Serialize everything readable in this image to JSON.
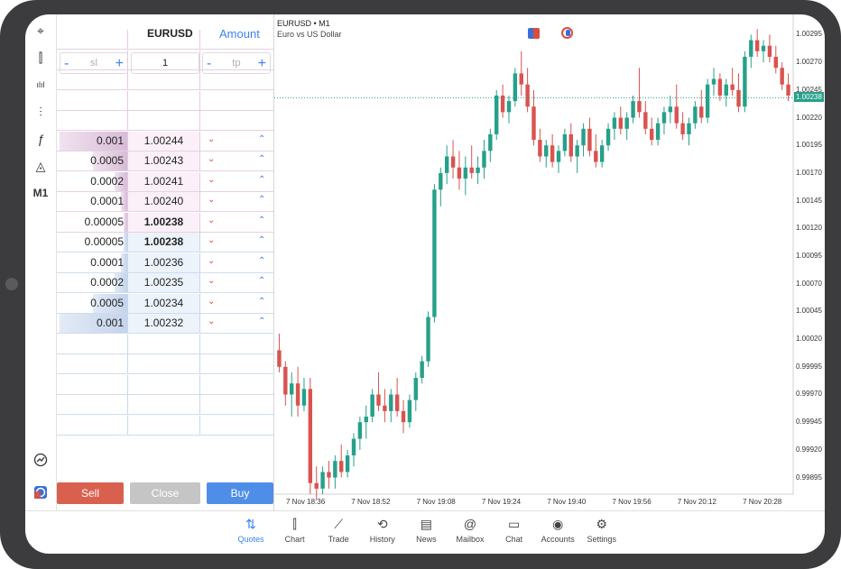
{
  "toolbar": {
    "items": [
      {
        "icon": "crosshair-icon",
        "glyph": "⌖"
      },
      {
        "icon": "candlestick-icon",
        "glyph": "⫿"
      },
      {
        "icon": "volume-bars-icon",
        "glyph": "ılıl"
      },
      {
        "icon": "indicators-sliders-icon",
        "glyph": "⫶"
      },
      {
        "icon": "function-icon",
        "glyph": "ƒ"
      },
      {
        "icon": "objects-shapes-icon",
        "glyph": "◬"
      }
    ],
    "timeframe": "M1"
  },
  "dom": {
    "symbol": "EURUSD",
    "amount_label": "Amount",
    "sl_placeholder": "sl",
    "tp_placeholder": "tp",
    "volume_value": "1",
    "sell_rows": [
      {
        "volume": "0.001",
        "price": "1.00244",
        "bar": 0.95
      },
      {
        "volume": "0.0005",
        "price": "1.00243",
        "bar": 0.48
      },
      {
        "volume": "0.0002",
        "price": "1.00241",
        "bar": 0.18
      },
      {
        "volume": "0.0001",
        "price": "1.00240",
        "bar": 0.09
      },
      {
        "volume": "0.00005",
        "price": "1.00238",
        "bar": 0.05
      }
    ],
    "buy_rows": [
      {
        "volume": "0.00005",
        "price": "1.00238",
        "bar": 0.05
      },
      {
        "volume": "0.0001",
        "price": "1.00236",
        "bar": 0.09
      },
      {
        "volume": "0.0002",
        "price": "1.00235",
        "bar": 0.18
      },
      {
        "volume": "0.0005",
        "price": "1.00234",
        "bar": 0.48
      },
      {
        "volume": "0.001",
        "price": "1.00232",
        "bar": 0.95
      }
    ],
    "sell_label": "Sell",
    "close_label": "Close",
    "buy_label": "Buy",
    "colors": {
      "sell": "#d9604f",
      "close": "#c5c5c5",
      "buy": "#4f8ee8"
    }
  },
  "chart": {
    "title": "EURUSD • M1",
    "subtitle": "Euro vs US Dollar",
    "current_price": "1.00238",
    "price_labels": [
      "1.00295",
      "1.00270",
      "1.00245",
      "1.00220",
      "1.00195",
      "1.00170",
      "1.00145",
      "1.00120",
      "1.00095",
      "1.00070",
      "1.00045",
      "1.00020",
      "0.99995",
      "0.99970",
      "0.99945",
      "0.99920",
      "0.99895"
    ],
    "time_labels": [
      "7 Nov 18:36",
      "7 Nov 18:52",
      "7 Nov 19:08",
      "7 Nov 19:24",
      "7 Nov 19:40",
      "7 Nov 19:56",
      "7 Nov 20:12",
      "7 Nov 20:28"
    ],
    "colors": {
      "up": "#26a08a",
      "down": "#d9534f",
      "current": "#26a08a"
    }
  },
  "chart_data": {
    "type": "candlestick",
    "ylim": [
      0.9988,
      1.0031
    ],
    "candles": [
      [
        1.0001,
        1.00025,
        0.9999,
        0.99995
      ],
      [
        0.99995,
        1.0,
        0.9996,
        0.9997
      ],
      [
        0.9997,
        0.9999,
        0.9995,
        0.9998
      ],
      [
        0.9998,
        0.99995,
        0.9995,
        0.9996
      ],
      [
        0.9996,
        0.99985,
        0.99955,
        0.99975
      ],
      [
        0.99975,
        0.99985,
        0.9988,
        0.9989
      ],
      [
        0.9989,
        0.99905,
        0.99875,
        0.99885
      ],
      [
        0.99885,
        0.99905,
        0.9988,
        0.999
      ],
      [
        0.999,
        0.9991,
        0.99885,
        0.99895
      ],
      [
        0.99895,
        0.99915,
        0.99885,
        0.9991
      ],
      [
        0.9991,
        0.99925,
        0.99895,
        0.999
      ],
      [
        0.999,
        0.9992,
        0.99895,
        0.99915
      ],
      [
        0.99915,
        0.99935,
        0.99905,
        0.9993
      ],
      [
        0.9993,
        0.9995,
        0.9992,
        0.99945
      ],
      [
        0.99945,
        0.9996,
        0.9993,
        0.9995
      ],
      [
        0.9995,
        0.99975,
        0.99945,
        0.9997
      ],
      [
        0.9997,
        0.9999,
        0.99955,
        0.9996
      ],
      [
        0.9996,
        0.99975,
        0.99945,
        0.99955
      ],
      [
        0.99955,
        0.99975,
        0.99945,
        0.9997
      ],
      [
        0.9997,
        0.99985,
        0.9995,
        0.99955
      ],
      [
        0.99955,
        0.99965,
        0.99935,
        0.99945
      ],
      [
        0.99945,
        0.9997,
        0.9994,
        0.99965
      ],
      [
        0.99965,
        0.9999,
        0.99955,
        0.99985
      ],
      [
        0.99985,
        1.00005,
        0.9998,
        1.0
      ],
      [
        1.0,
        1.00045,
        0.99995,
        1.0004
      ],
      [
        1.0004,
        1.0016,
        1.00035,
        1.00155
      ],
      [
        1.00155,
        1.00175,
        1.0014,
        1.0017
      ],
      [
        1.0017,
        1.00195,
        1.0016,
        1.00185
      ],
      [
        1.00185,
        1.002,
        1.00165,
        1.00175
      ],
      [
        1.00175,
        1.0019,
        1.00155,
        1.00165
      ],
      [
        1.00165,
        1.00185,
        1.0015,
        1.00175
      ],
      [
        1.00175,
        1.00195,
        1.00165,
        1.0017
      ],
      [
        1.0017,
        1.00185,
        1.0016,
        1.00175
      ],
      [
        1.00175,
        1.002,
        1.00165,
        1.0019
      ],
      [
        1.0019,
        1.0021,
        1.0018,
        1.00205
      ],
      [
        1.00205,
        1.00245,
        1.002,
        1.0024
      ],
      [
        1.0024,
        1.0025,
        1.0022,
        1.00225
      ],
      [
        1.00225,
        1.0024,
        1.00215,
        1.00235
      ],
      [
        1.00235,
        1.00265,
        1.0023,
        1.0026
      ],
      [
        1.0026,
        1.0028,
        1.0024,
        1.0025
      ],
      [
        1.0025,
        1.00265,
        1.00225,
        1.0023
      ],
      [
        1.0023,
        1.00245,
        1.00195,
        1.002
      ],
      [
        1.002,
        1.0021,
        1.0018,
        1.00185
      ],
      [
        1.00185,
        1.002,
        1.00175,
        1.00195
      ],
      [
        1.00195,
        1.00205,
        1.00175,
        1.0018
      ],
      [
        1.0018,
        1.00195,
        1.0017,
        1.0019
      ],
      [
        1.0019,
        1.0021,
        1.00185,
        1.00205
      ],
      [
        1.00205,
        1.00215,
        1.0018,
        1.00185
      ],
      [
        1.00185,
        1.002,
        1.0017,
        1.00195
      ],
      [
        1.00195,
        1.00215,
        1.00185,
        1.0021
      ],
      [
        1.0021,
        1.0022,
        1.00185,
        1.0019
      ],
      [
        1.0019,
        1.00205,
        1.00175,
        1.0018
      ],
      [
        1.0018,
        1.002,
        1.00175,
        1.00195
      ],
      [
        1.00195,
        1.00215,
        1.0019,
        1.0021
      ],
      [
        1.0021,
        1.00225,
        1.002,
        1.0022
      ],
      [
        1.0022,
        1.0023,
        1.00205,
        1.0021
      ],
      [
        1.0021,
        1.00225,
        1.002,
        1.0022
      ],
      [
        1.0022,
        1.0024,
        1.00215,
        1.00235
      ],
      [
        1.00235,
        1.00265,
        1.0022,
        1.00225
      ],
      [
        1.00225,
        1.00235,
        1.00205,
        1.0021
      ],
      [
        1.0021,
        1.0022,
        1.00195,
        1.002
      ],
      [
        1.002,
        1.0022,
        1.00195,
        1.00215
      ],
      [
        1.00215,
        1.0023,
        1.00205,
        1.00225
      ],
      [
        1.00225,
        1.0024,
        1.00215,
        1.0023
      ],
      [
        1.0023,
        1.0025,
        1.0021,
        1.00215
      ],
      [
        1.00215,
        1.00225,
        1.002,
        1.00205
      ],
      [
        1.00205,
        1.0022,
        1.00195,
        1.00215
      ],
      [
        1.00215,
        1.00235,
        1.0021,
        1.0023
      ],
      [
        1.0023,
        1.00245,
        1.00215,
        1.0022
      ],
      [
        1.0022,
        1.00255,
        1.00215,
        1.0025
      ],
      [
        1.0025,
        1.00265,
        1.0024,
        1.00255
      ],
      [
        1.00255,
        1.0026,
        1.00235,
        1.0024
      ],
      [
        1.0024,
        1.00255,
        1.0023,
        1.0025
      ],
      [
        1.0025,
        1.00265,
        1.0024,
        1.00245
      ],
      [
        1.00245,
        1.0026,
        1.00225,
        1.0023
      ],
      [
        1.0023,
        1.0028,
        1.00225,
        1.00275
      ],
      [
        1.00275,
        1.00295,
        1.00265,
        1.0029
      ],
      [
        1.0029,
        1.003,
        1.00275,
        1.0028
      ],
      [
        1.0028,
        1.0029,
        1.0027,
        1.00285
      ],
      [
        1.00285,
        1.00295,
        1.0027,
        1.00275
      ],
      [
        1.00275,
        1.00285,
        1.0026,
        1.00265
      ],
      [
        1.00265,
        1.0027,
        1.00245,
        1.0025
      ],
      [
        1.0025,
        1.0026,
        1.00235,
        1.0024
      ]
    ]
  },
  "bottom_nav": [
    {
      "label": "Quotes",
      "icon": "quotes-arrows-icon",
      "glyph": "⇅",
      "active": true
    },
    {
      "label": "Chart",
      "icon": "chart-candles-icon",
      "glyph": "⫿",
      "active": false
    },
    {
      "label": "Trade",
      "icon": "trade-line-icon",
      "glyph": "⟋",
      "active": false
    },
    {
      "label": "History",
      "icon": "history-clock-icon",
      "glyph": "⟲",
      "active": false
    },
    {
      "label": "News",
      "icon": "news-icon",
      "glyph": "▤",
      "active": false
    },
    {
      "label": "Mailbox",
      "icon": "mailbox-at-icon",
      "glyph": "@",
      "active": false
    },
    {
      "label": "Chat",
      "icon": "chat-bubble-icon",
      "glyph": "▭",
      "active": false
    },
    {
      "label": "Accounts",
      "icon": "accounts-user-icon",
      "glyph": "◉",
      "active": false
    },
    {
      "label": "Settings",
      "icon": "settings-gear-icon",
      "glyph": "⚙",
      "active": false
    }
  ]
}
